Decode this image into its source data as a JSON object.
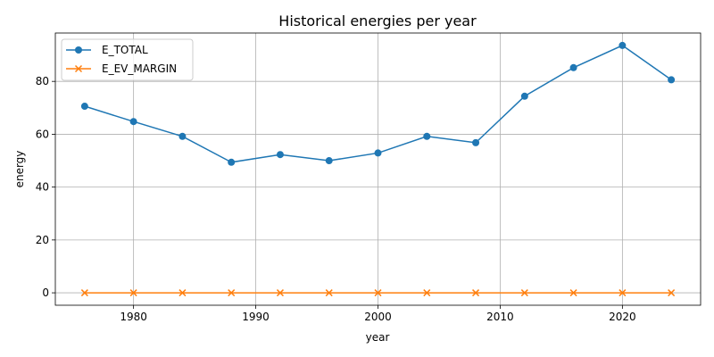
{
  "chart_data": {
    "type": "line",
    "title": "Historical energies per year",
    "xlabel": "year",
    "ylabel": "energy",
    "x": [
      1976,
      1980,
      1984,
      1988,
      1992,
      1996,
      2000,
      2004,
      2008,
      2012,
      2016,
      2020,
      2024
    ],
    "xlim": [
      1973.6,
      2026.4
    ],
    "ylim": [
      -4.7,
      98.3
    ],
    "xticks": [
      1980,
      1990,
      2000,
      2010,
      2020
    ],
    "yticks": [
      0,
      20,
      40,
      60,
      80
    ],
    "grid": true,
    "legend_position": "top-left",
    "series": [
      {
        "name": "E_TOTAL",
        "color": "#1f77b4",
        "marker": "circle",
        "values": [
          70.6,
          64.8,
          59.2,
          49.4,
          52.3,
          50.0,
          52.9,
          59.2,
          56.8,
          74.4,
          85.2,
          93.6,
          80.6
        ]
      },
      {
        "name": "E_EV_MARGIN",
        "color": "#ff7f0e",
        "marker": "x",
        "values": [
          0,
          0,
          0,
          0,
          0,
          0,
          0,
          0,
          0,
          0,
          0,
          0,
          0
        ]
      }
    ]
  }
}
